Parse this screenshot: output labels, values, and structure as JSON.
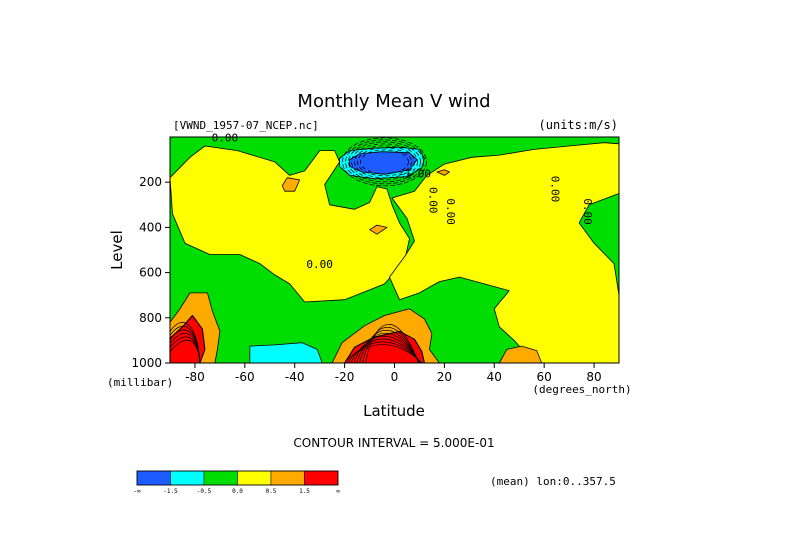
{
  "chart_data": {
    "type": "heatmap",
    "title": "Monthly Mean V wind",
    "dataset_label": "[VWND_1957-07_NCEP.nc]",
    "units_label": "(units:m/s)",
    "xlabel": "Latitude",
    "ylabel": "Level",
    "x_unit_label": "(degrees_north)",
    "y_unit_label": "(millibar)",
    "contour_interval_label": "CONTOUR INTERVAL = 5.000E-01",
    "mean_label": "(mean) lon:0..357.5",
    "x_range": [
      -90,
      90
    ],
    "y_range": [
      0,
      1000
    ],
    "x_ticks": [
      {
        "value": -80,
        "label": "-80"
      },
      {
        "value": -60,
        "label": "-60"
      },
      {
        "value": -40,
        "label": "-40"
      },
      {
        "value": -20,
        "label": "-20"
      },
      {
        "value": 0,
        "label": "0"
      },
      {
        "value": 20,
        "label": "20"
      },
      {
        "value": 40,
        "label": "40"
      },
      {
        "value": 60,
        "label": "60"
      },
      {
        "value": 80,
        "label": "80"
      }
    ],
    "y_ticks": [
      {
        "value": 200,
        "label": "200"
      },
      {
        "value": 400,
        "label": "400"
      },
      {
        "value": 600,
        "label": "600"
      },
      {
        "value": 800,
        "label": "800"
      },
      {
        "value": 1000,
        "label": "1000"
      }
    ],
    "legend": {
      "labels": [
        "-∞",
        "-1.5",
        "-0.5",
        "0.0",
        "0.5",
        "1.5",
        "∞"
      ],
      "colors": [
        "#1f5cff",
        "#00ffff",
        "#00dd00",
        "#ffff00",
        "#ffaa00",
        "#ff0000"
      ]
    },
    "contour_labels": [
      {
        "x": -68,
        "y": 20,
        "text": "0.00"
      },
      {
        "x": 8,
        "y": 180,
        "text": "-1.00"
      },
      {
        "x": -30,
        "y": 580,
        "text": "0.00"
      },
      {
        "x": 14,
        "y": 280,
        "text": "0.00"
      },
      {
        "x": 21,
        "y": 330,
        "text": "0.00"
      },
      {
        "x": 63,
        "y": 230,
        "text": "0.00"
      },
      {
        "x": 76,
        "y": 330,
        "text": "0.00"
      }
    ],
    "regions": [
      {
        "name": "western-positive-band",
        "value_range": "0.0 to 0.5",
        "color": "#ffff00",
        "points": [
          [
            -82,
            90
          ],
          [
            -76,
            40
          ],
          [
            -63,
            60
          ],
          [
            -48,
            110
          ],
          [
            -42,
            170
          ],
          [
            -36,
            150
          ],
          [
            -30,
            60
          ],
          [
            -24,
            60
          ],
          [
            -22,
            110
          ],
          [
            -28,
            210
          ],
          [
            -26,
            300
          ],
          [
            -16,
            320
          ],
          [
            -10,
            290
          ],
          [
            -7,
            220
          ],
          [
            -3,
            230
          ],
          [
            -1,
            300
          ],
          [
            2,
            380
          ],
          [
            6,
            450
          ],
          [
            4,
            550
          ],
          [
            -4,
            650
          ],
          [
            -20,
            720
          ],
          [
            -36,
            730
          ],
          [
            -42,
            650
          ],
          [
            -48,
            610
          ],
          [
            -54,
            560
          ],
          [
            -62,
            520
          ],
          [
            -74,
            520
          ],
          [
            -84,
            470
          ],
          [
            -89,
            340
          ],
          [
            -90,
            180
          ]
        ]
      },
      {
        "name": "central-positive-band",
        "value_range": "0.0 to 0.5",
        "color": "#ffff00",
        "points": [
          [
            -1,
            270
          ],
          [
            8,
            240
          ],
          [
            13,
            170
          ],
          [
            20,
            120
          ],
          [
            31,
            90
          ],
          [
            42,
            80
          ],
          [
            56,
            55
          ],
          [
            70,
            40
          ],
          [
            84,
            25
          ],
          [
            90,
            30
          ],
          [
            90,
            250
          ],
          [
            78,
            300
          ],
          [
            74,
            380
          ],
          [
            80,
            470
          ],
          [
            88,
            560
          ],
          [
            90,
            700
          ],
          [
            90,
            1000
          ],
          [
            56,
            1000
          ],
          [
            52,
            950
          ],
          [
            48,
            900
          ],
          [
            42,
            840
          ],
          [
            40,
            760
          ],
          [
            46,
            680
          ],
          [
            36,
            650
          ],
          [
            26,
            620
          ],
          [
            18,
            640
          ],
          [
            10,
            690
          ],
          [
            2,
            720
          ],
          [
            -2,
            620
          ],
          [
            4,
            530
          ],
          [
            8,
            460
          ],
          [
            5,
            360
          ]
        ]
      },
      {
        "name": "north-dateline-negative",
        "value_range": "-1.5 to -0.5",
        "color": "#00ffff",
        "points": [
          [
            -22,
            95
          ],
          [
            -18,
            60
          ],
          [
            -9,
            50
          ],
          [
            2,
            45
          ],
          [
            10,
            55
          ],
          [
            12,
            95
          ],
          [
            11,
            135
          ],
          [
            5,
            175
          ],
          [
            -8,
            185
          ],
          [
            -18,
            170
          ],
          [
            -22,
            130
          ]
        ]
      },
      {
        "name": "north-dateline-strong-negative",
        "value_range": "below -1.5",
        "color": "#1f5cff",
        "points": [
          [
            -18,
            100
          ],
          [
            -14,
            75
          ],
          [
            -5,
            65
          ],
          [
            6,
            70
          ],
          [
            9,
            100
          ],
          [
            6,
            145
          ],
          [
            -4,
            165
          ],
          [
            -13,
            155
          ],
          [
            -18,
            130
          ]
        ]
      },
      {
        "name": "southern-low-negative",
        "value_range": "-1.5 to -0.5",
        "color": "#00ffff",
        "points": [
          [
            -58,
            925
          ],
          [
            -48,
            920
          ],
          [
            -37,
            910
          ],
          [
            -31,
            940
          ],
          [
            -29,
            1000
          ],
          [
            -58,
            1000
          ]
        ]
      },
      {
        "name": "lower-equatorial-maximum",
        "value_range": "0.5 to 1.5",
        "color": "#ffaa00",
        "points": [
          [
            -25,
            1000
          ],
          [
            -21,
            910
          ],
          [
            -12,
            835
          ],
          [
            -4,
            790
          ],
          [
            6,
            760
          ],
          [
            12,
            805
          ],
          [
            15,
            870
          ],
          [
            14,
            940
          ],
          [
            18,
            1000
          ]
        ]
      },
      {
        "name": "lower-equatorial-core",
        "value_range": "above 1.5",
        "color": "#ff0000",
        "points": [
          [
            -20,
            1000
          ],
          [
            -16,
            930
          ],
          [
            -8,
            885
          ],
          [
            2,
            860
          ],
          [
            8,
            895
          ],
          [
            11,
            950
          ],
          [
            12,
            1000
          ]
        ]
      },
      {
        "name": "south-polar-maximum",
        "value_range": "0.5 to 1.5",
        "color": "#ffaa00",
        "points": [
          [
            -90,
            820
          ],
          [
            -86,
            760
          ],
          [
            -82,
            690
          ],
          [
            -75,
            690
          ],
          [
            -73,
            770
          ],
          [
            -70,
            860
          ],
          [
            -71,
            940
          ],
          [
            -72,
            1000
          ],
          [
            -90,
            1000
          ]
        ]
      },
      {
        "name": "south-polar-core",
        "value_range": "above 1.5",
        "color": "#ff0000",
        "points": [
          [
            -90,
            890
          ],
          [
            -85,
            840
          ],
          [
            -81,
            790
          ],
          [
            -77,
            850
          ],
          [
            -76,
            940
          ],
          [
            -78,
            1000
          ],
          [
            -90,
            1000
          ]
        ]
      },
      {
        "name": "north-surface-maximum",
        "value_range": "0.5 to 1.5",
        "color": "#ffaa00",
        "points": [
          [
            42,
            1000
          ],
          [
            45,
            940
          ],
          [
            51,
            925
          ],
          [
            57,
            945
          ],
          [
            59,
            1000
          ]
        ]
      },
      {
        "name": "small-south-maximum",
        "value_range": "0.5 to 1.5",
        "color": "#ffaa00",
        "points": [
          [
            -45,
            215
          ],
          [
            -43,
            180
          ],
          [
            -38,
            190
          ],
          [
            -40,
            240
          ],
          [
            -44,
            240
          ]
        ]
      },
      {
        "name": "small-mid-maximum",
        "value_range": "0.5 to 1.5",
        "color": "#ffaa00",
        "points": [
          [
            -10,
            410
          ],
          [
            -7,
            390
          ],
          [
            -3,
            400
          ],
          [
            -7,
            430
          ]
        ]
      },
      {
        "name": "small-north-maximum",
        "value_range": "0.5 to 1.5",
        "color": "#ffaa00",
        "points": [
          [
            17,
            155
          ],
          [
            20,
            145
          ],
          [
            22,
            155
          ],
          [
            20,
            170
          ]
        ]
      }
    ]
  }
}
